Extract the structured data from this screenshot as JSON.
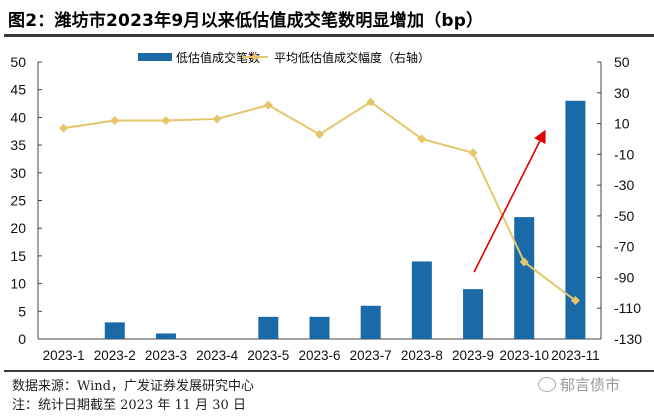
{
  "header": {
    "title": "图2：潍坊市2023年9月以来低估值成交笔数明显增加（bp）"
  },
  "chart_data": {
    "type": "bar+line",
    "title": "图2：潍坊市2023年9月以来低估值成交笔数明显增加（bp）",
    "categories": [
      "2023-1",
      "2023-2",
      "2023-3",
      "2023-4",
      "2023-5",
      "2023-6",
      "2023-7",
      "2023-8",
      "2023-9",
      "2023-10",
      "2023-11"
    ],
    "series": [
      {
        "name": "低估值成交笔数",
        "type": "bar",
        "axis": "left",
        "color": "#1a6aa8",
        "values": [
          0,
          3,
          1,
          0,
          4,
          4,
          6,
          14,
          9,
          22,
          43
        ]
      },
      {
        "name": "平均低估值成交幅度（右轴）",
        "type": "line",
        "axis": "right",
        "color": "#e6c66a",
        "marker": "diamond",
        "values": [
          7,
          12,
          12,
          13,
          22,
          3,
          24,
          0,
          -9,
          -80,
          -105
        ]
      }
    ],
    "left_axis": {
      "ylim": [
        0,
        50
      ],
      "ticks": [
        0,
        5,
        10,
        15,
        20,
        25,
        30,
        35,
        40,
        45,
        50
      ]
    },
    "right_axis": {
      "ylim": [
        -130,
        50
      ],
      "ticks": [
        -130,
        -110,
        -90,
        -70,
        -50,
        -30,
        -10,
        10,
        30,
        50
      ]
    },
    "xlabel": "",
    "ylabel": "",
    "grid": false,
    "legend_position": "top-center",
    "annotations": [
      {
        "type": "arrow",
        "color": "#e00000",
        "from": [
          "2023-9",
          9
        ],
        "to": [
          "2023-11",
          37
        ],
        "axis": "left"
      }
    ]
  },
  "footer": {
    "source": "数据来源：Wind，广发证券发展研究中心",
    "note": "注：统计日期截至 2023 年 11 月 30 日",
    "watermark": "郁言债市"
  }
}
